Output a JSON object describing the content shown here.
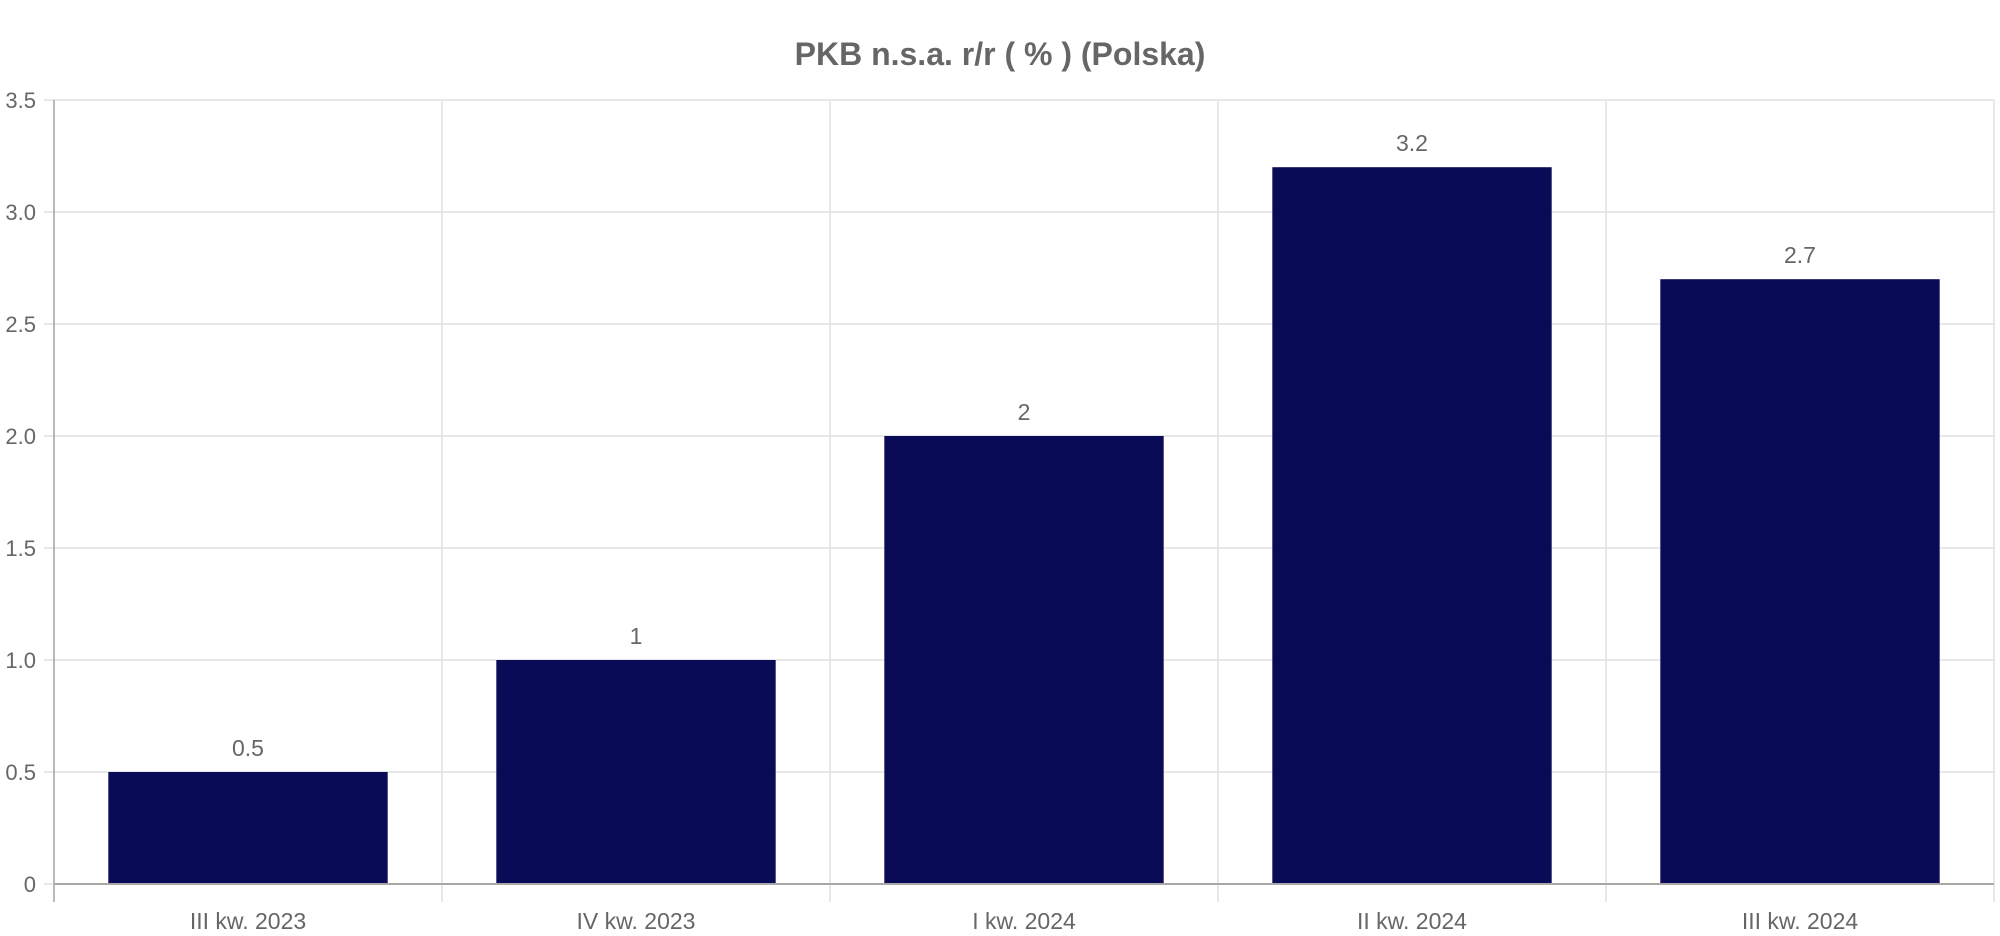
{
  "chart_data": {
    "type": "bar",
    "title": "PKB n.s.a. r/r ( % ) (Polska)",
    "categories": [
      "III kw. 2023",
      "IV kw. 2023",
      "I kw. 2024",
      "II kw. 2024",
      "III kw. 2024"
    ],
    "values": [
      0.5,
      1,
      2,
      3.2,
      2.7
    ],
    "data_labels": [
      "0.5",
      "1",
      "2",
      "3.2",
      "2.7"
    ],
    "y_ticks": [
      0,
      0.5,
      1.0,
      1.5,
      2.0,
      2.5,
      3.0,
      3.5
    ],
    "y_tick_labels": [
      "0",
      "0.5",
      "1.0",
      "1.5",
      "2.0",
      "2.5",
      "3.0",
      "3.5"
    ],
    "ylim": [
      0,
      3.5
    ],
    "xlabel": "",
    "ylabel": "",
    "grid": true,
    "legend": "none",
    "colors": {
      "bar": "#0a0b57",
      "grid": "#e1e1e1",
      "axis": "#a8a8a8",
      "text": "#666666"
    }
  }
}
